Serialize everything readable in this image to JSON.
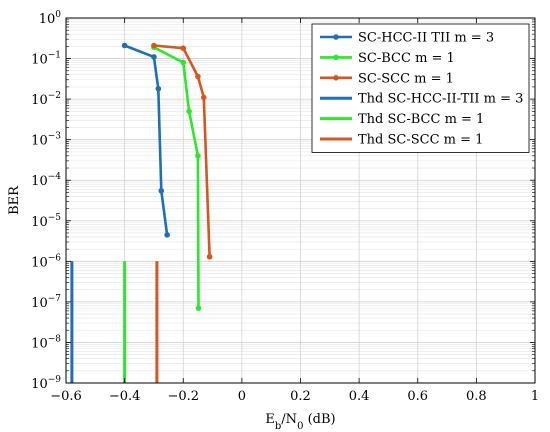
{
  "chart_data": {
    "type": "line",
    "xlabel": "E_b/N_0 (dB)",
    "xlabel_parts": {
      "e": "E",
      "b": "b",
      "slash": "/N",
      "zero": "0",
      "unit": " (dB)"
    },
    "ylabel": "BER",
    "xlim": [
      -0.6,
      1
    ],
    "ylim_exp": [
      -9,
      0
    ],
    "y_scale": "log",
    "grid": true,
    "legend_position": "top-right",
    "x_ticks": [
      -0.6,
      -0.4,
      -0.2,
      0,
      0.2,
      0.4,
      0.6,
      0.8,
      1
    ],
    "x_tick_labels": [
      "−0.6",
      "−0.4",
      "−0.2",
      "0",
      "0.2",
      "0.4",
      "0.6",
      "0.8",
      "1"
    ],
    "y_tick_exps": [
      0,
      -1,
      -2,
      -3,
      -4,
      -5,
      -6,
      -7,
      -8,
      -9
    ],
    "y_tick_labels": [
      "10",
      "10",
      "10",
      "10",
      "10",
      "10",
      "10",
      "10",
      "10",
      "10"
    ],
    "y_tick_exp_labels": [
      "0",
      "−1",
      "−2",
      "−3",
      "−4",
      "−5",
      "−6",
      "−7",
      "−8",
      "−9"
    ],
    "series": [
      {
        "name": "SC-HCC-II TII m = 3",
        "kind": "curve",
        "color": "#1f6fb5",
        "x": [
          -0.4,
          -0.3,
          -0.285,
          -0.275,
          -0.255
        ],
        "y": [
          0.21,
          0.11,
          0.018,
          5.5e-05,
          4.5e-06
        ]
      },
      {
        "name": "SC-BCC m = 1",
        "kind": "curve",
        "color": "#2de62d",
        "x": [
          -0.3,
          -0.2,
          -0.18,
          -0.15,
          -0.148
        ],
        "y": [
          0.19,
          0.08,
          0.005,
          0.0004,
          7e-08
        ]
      },
      {
        "name": "SC-SCC m = 1",
        "kind": "curve",
        "color": "#d4571f",
        "x": [
          -0.3,
          -0.2,
          -0.15,
          -0.13,
          -0.11
        ],
        "y": [
          0.21,
          0.18,
          0.036,
          0.011,
          1.3e-06
        ]
      },
      {
        "name": "Thd SC-HCC-II-TII m = 3",
        "kind": "threshold",
        "color": "#1f6fb5",
        "x": [
          -0.58,
          -0.58
        ],
        "y": [
          1e-06,
          1e-09
        ]
      },
      {
        "name": "Thd SC-BCC m = 1",
        "kind": "threshold",
        "color": "#2de62d",
        "x": [
          -0.4,
          -0.4
        ],
        "y": [
          1e-06,
          1e-09
        ]
      },
      {
        "name": "Thd SC-SCC m = 1",
        "kind": "threshold",
        "color": "#d4571f",
        "x": [
          -0.29,
          -0.29
        ],
        "y": [
          1e-06,
          1e-09
        ]
      }
    ]
  }
}
